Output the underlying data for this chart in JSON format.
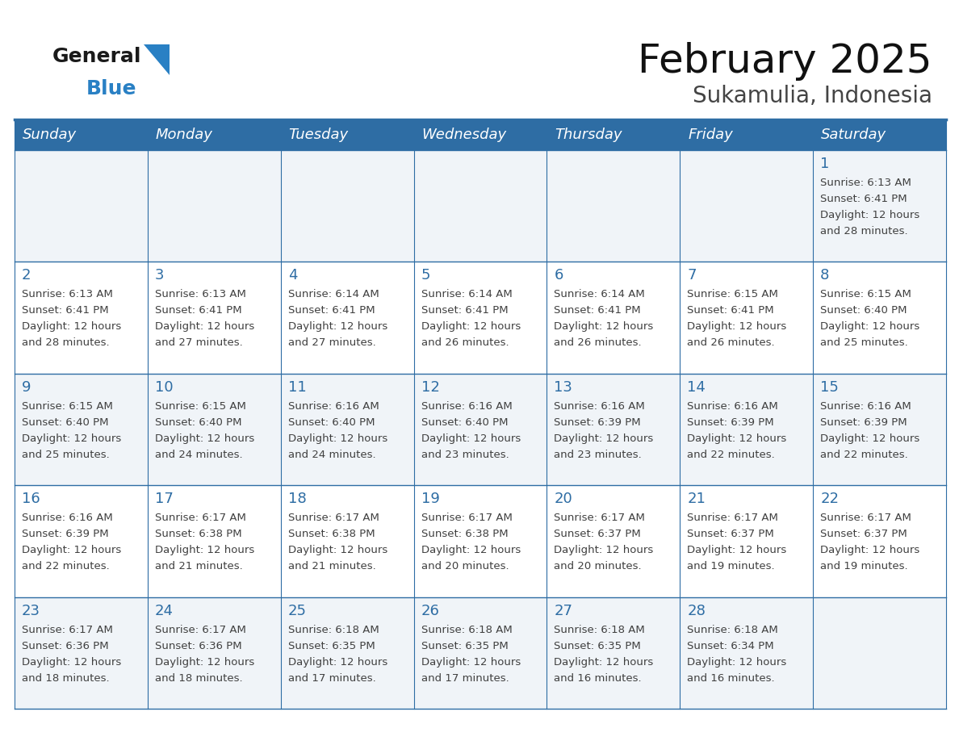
{
  "title": "February 2025",
  "subtitle": "Sukamulia, Indonesia",
  "header_bg": "#2E6DA4",
  "header_text_color": "#FFFFFF",
  "cell_bg_alt": "#F0F4F8",
  "cell_bg_white": "#FFFFFF",
  "day_number_color": "#2E6DA4",
  "cell_text_color": "#404040",
  "line_color": "#2E6DA4",
  "days_of_week": [
    "Sunday",
    "Monday",
    "Tuesday",
    "Wednesday",
    "Thursday",
    "Friday",
    "Saturday"
  ],
  "calendar_data": [
    [
      null,
      null,
      null,
      null,
      null,
      null,
      {
        "day": 1,
        "sunrise": "6:13 AM",
        "sunset": "6:41 PM",
        "daylight_l1": "Daylight: 12 hours",
        "daylight_l2": "and 28 minutes."
      }
    ],
    [
      {
        "day": 2,
        "sunrise": "6:13 AM",
        "sunset": "6:41 PM",
        "daylight_l1": "Daylight: 12 hours",
        "daylight_l2": "and 28 minutes."
      },
      {
        "day": 3,
        "sunrise": "6:13 AM",
        "sunset": "6:41 PM",
        "daylight_l1": "Daylight: 12 hours",
        "daylight_l2": "and 27 minutes."
      },
      {
        "day": 4,
        "sunrise": "6:14 AM",
        "sunset": "6:41 PM",
        "daylight_l1": "Daylight: 12 hours",
        "daylight_l2": "and 27 minutes."
      },
      {
        "day": 5,
        "sunrise": "6:14 AM",
        "sunset": "6:41 PM",
        "daylight_l1": "Daylight: 12 hours",
        "daylight_l2": "and 26 minutes."
      },
      {
        "day": 6,
        "sunrise": "6:14 AM",
        "sunset": "6:41 PM",
        "daylight_l1": "Daylight: 12 hours",
        "daylight_l2": "and 26 minutes."
      },
      {
        "day": 7,
        "sunrise": "6:15 AM",
        "sunset": "6:41 PM",
        "daylight_l1": "Daylight: 12 hours",
        "daylight_l2": "and 26 minutes."
      },
      {
        "day": 8,
        "sunrise": "6:15 AM",
        "sunset": "6:40 PM",
        "daylight_l1": "Daylight: 12 hours",
        "daylight_l2": "and 25 minutes."
      }
    ],
    [
      {
        "day": 9,
        "sunrise": "6:15 AM",
        "sunset": "6:40 PM",
        "daylight_l1": "Daylight: 12 hours",
        "daylight_l2": "and 25 minutes."
      },
      {
        "day": 10,
        "sunrise": "6:15 AM",
        "sunset": "6:40 PM",
        "daylight_l1": "Daylight: 12 hours",
        "daylight_l2": "and 24 minutes."
      },
      {
        "day": 11,
        "sunrise": "6:16 AM",
        "sunset": "6:40 PM",
        "daylight_l1": "Daylight: 12 hours",
        "daylight_l2": "and 24 minutes."
      },
      {
        "day": 12,
        "sunrise": "6:16 AM",
        "sunset": "6:40 PM",
        "daylight_l1": "Daylight: 12 hours",
        "daylight_l2": "and 23 minutes."
      },
      {
        "day": 13,
        "sunrise": "6:16 AM",
        "sunset": "6:39 PM",
        "daylight_l1": "Daylight: 12 hours",
        "daylight_l2": "and 23 minutes."
      },
      {
        "day": 14,
        "sunrise": "6:16 AM",
        "sunset": "6:39 PM",
        "daylight_l1": "Daylight: 12 hours",
        "daylight_l2": "and 22 minutes."
      },
      {
        "day": 15,
        "sunrise": "6:16 AM",
        "sunset": "6:39 PM",
        "daylight_l1": "Daylight: 12 hours",
        "daylight_l2": "and 22 minutes."
      }
    ],
    [
      {
        "day": 16,
        "sunrise": "6:16 AM",
        "sunset": "6:39 PM",
        "daylight_l1": "Daylight: 12 hours",
        "daylight_l2": "and 22 minutes."
      },
      {
        "day": 17,
        "sunrise": "6:17 AM",
        "sunset": "6:38 PM",
        "daylight_l1": "Daylight: 12 hours",
        "daylight_l2": "and 21 minutes."
      },
      {
        "day": 18,
        "sunrise": "6:17 AM",
        "sunset": "6:38 PM",
        "daylight_l1": "Daylight: 12 hours",
        "daylight_l2": "and 21 minutes."
      },
      {
        "day": 19,
        "sunrise": "6:17 AM",
        "sunset": "6:38 PM",
        "daylight_l1": "Daylight: 12 hours",
        "daylight_l2": "and 20 minutes."
      },
      {
        "day": 20,
        "sunrise": "6:17 AM",
        "sunset": "6:37 PM",
        "daylight_l1": "Daylight: 12 hours",
        "daylight_l2": "and 20 minutes."
      },
      {
        "day": 21,
        "sunrise": "6:17 AM",
        "sunset": "6:37 PM",
        "daylight_l1": "Daylight: 12 hours",
        "daylight_l2": "and 19 minutes."
      },
      {
        "day": 22,
        "sunrise": "6:17 AM",
        "sunset": "6:37 PM",
        "daylight_l1": "Daylight: 12 hours",
        "daylight_l2": "and 19 minutes."
      }
    ],
    [
      {
        "day": 23,
        "sunrise": "6:17 AM",
        "sunset": "6:36 PM",
        "daylight_l1": "Daylight: 12 hours",
        "daylight_l2": "and 18 minutes."
      },
      {
        "day": 24,
        "sunrise": "6:17 AM",
        "sunset": "6:36 PM",
        "daylight_l1": "Daylight: 12 hours",
        "daylight_l2": "and 18 minutes."
      },
      {
        "day": 25,
        "sunrise": "6:18 AM",
        "sunset": "6:35 PM",
        "daylight_l1": "Daylight: 12 hours",
        "daylight_l2": "and 17 minutes."
      },
      {
        "day": 26,
        "sunrise": "6:18 AM",
        "sunset": "6:35 PM",
        "daylight_l1": "Daylight: 12 hours",
        "daylight_l2": "and 17 minutes."
      },
      {
        "day": 27,
        "sunrise": "6:18 AM",
        "sunset": "6:35 PM",
        "daylight_l1": "Daylight: 12 hours",
        "daylight_l2": "and 16 minutes."
      },
      {
        "day": 28,
        "sunrise": "6:18 AM",
        "sunset": "6:34 PM",
        "daylight_l1": "Daylight: 12 hours",
        "daylight_l2": "and 16 minutes."
      },
      null
    ]
  ],
  "logo_text1": "General",
  "logo_text2": "Blue",
  "logo_color1": "#1a1a1a",
  "logo_color2": "#2980C4",
  "logo_triangle_color": "#2980C4",
  "title_fontsize": 36,
  "subtitle_fontsize": 20,
  "header_fontsize": 13,
  "day_num_fontsize": 13,
  "cell_fontsize": 9.5
}
